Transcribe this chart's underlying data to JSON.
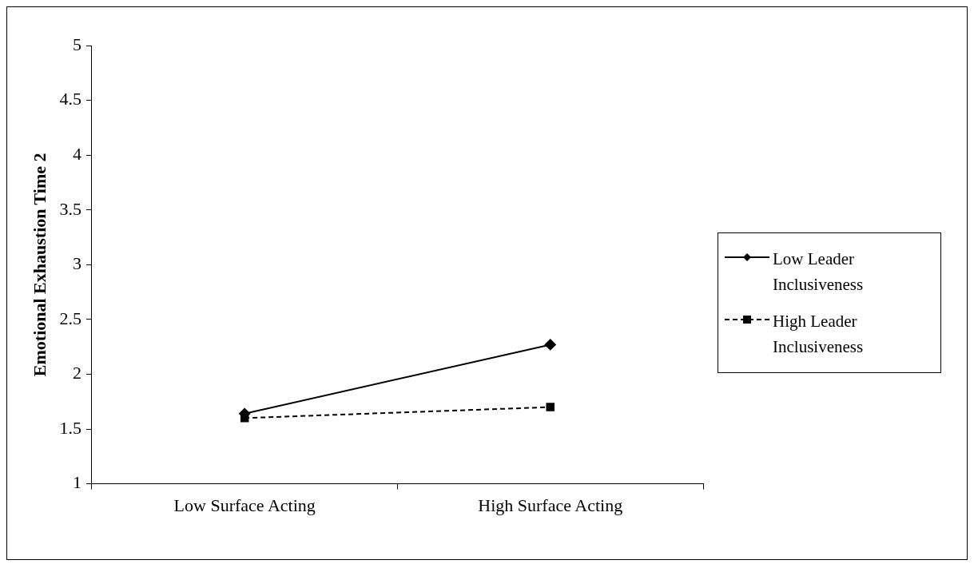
{
  "chart_data": {
    "type": "line",
    "ylabel": "Emotional Exhaustion Time 2",
    "categories": [
      "Low Surface Acting",
      "High Surface Acting"
    ],
    "series": [
      {
        "name": "Low Leader Inclusiveness",
        "color": "#000000",
        "values": [
          1.64,
          2.27
        ],
        "marker": "diamond",
        "line_style": "solid"
      },
      {
        "name": "High Leader Inclusiveness",
        "color": "#000000",
        "values": [
          1.6,
          1.7
        ],
        "marker": "square",
        "line_style": "dashed"
      }
    ],
    "ylim": [
      1,
      5
    ],
    "yticks": [
      1,
      1.5,
      2,
      2.5,
      3,
      3.5,
      4,
      4.5,
      5
    ],
    "grid": false,
    "legend": "right"
  }
}
